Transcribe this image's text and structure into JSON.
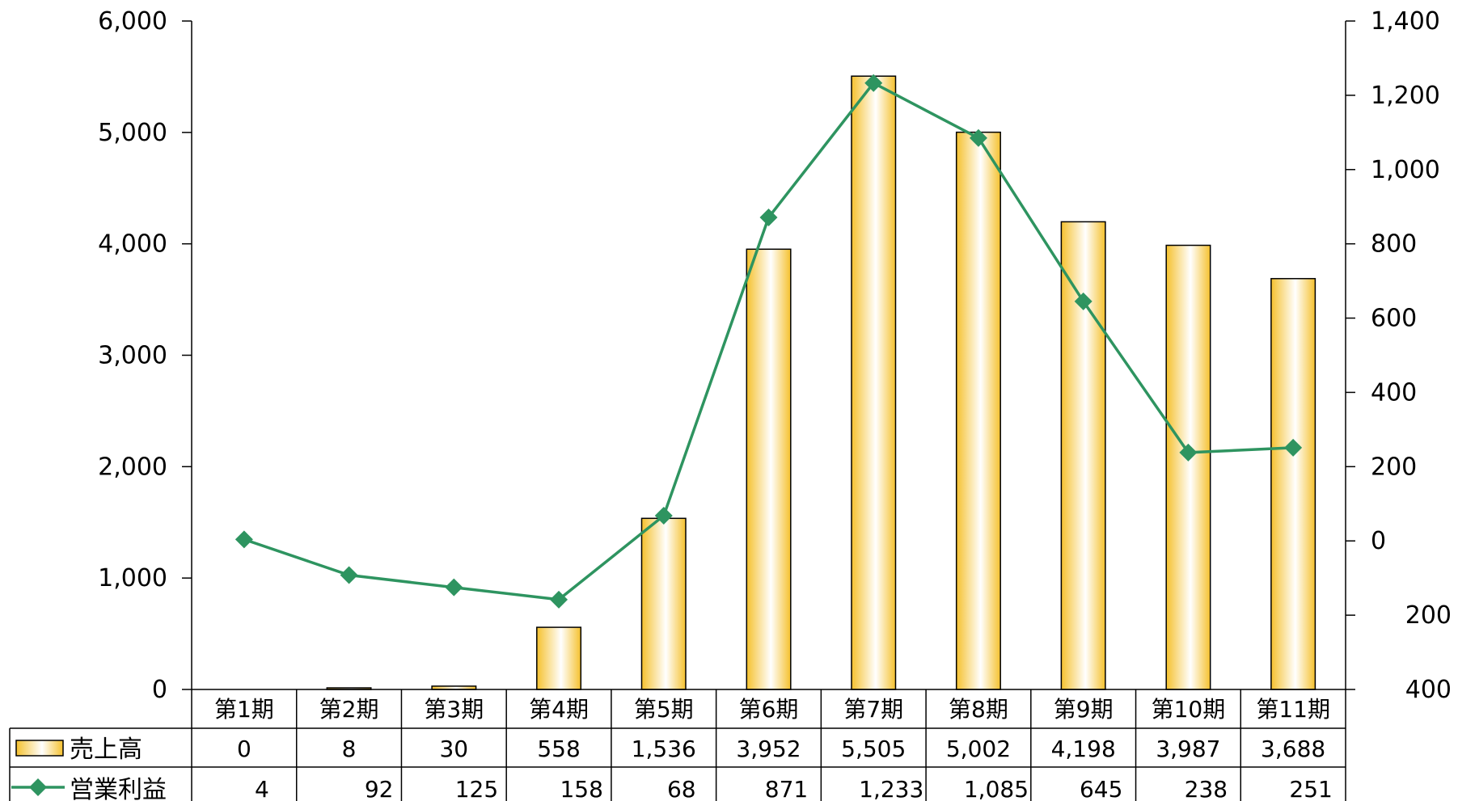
{
  "chart_data": {
    "type": "bar",
    "categories": [
      "第1期",
      "第2期",
      "第3期",
      "第4期",
      "第5期",
      "第6期",
      "第7期",
      "第8期",
      "第9期",
      "第10期",
      "第11期"
    ],
    "series": [
      {
        "name": "売上高",
        "type": "bar",
        "axis": "left",
        "values": [
          0,
          8,
          30,
          558,
          1536,
          3952,
          5505,
          5002,
          4198,
          3987,
          3688
        ],
        "color": "#F5C33B"
      },
      {
        "name": "営業利益",
        "type": "line",
        "axis": "right",
        "values": [
          4,
          -92,
          -125,
          -158,
          68,
          871,
          1233,
          1085,
          645,
          238,
          251
        ],
        "color": "#2E9460",
        "marker": "diamond"
      }
    ],
    "table_values": {
      "売上高": [
        "0",
        "8",
        "30",
        "558",
        "1,536",
        "3,952",
        "5,505",
        "5,002",
        "4,198",
        "3,987",
        "3,688"
      ],
      "営業利益": [
        "4",
        "92",
        "125",
        "158",
        "68",
        "871",
        "1,233",
        "1,085",
        "645",
        "238",
        "251"
      ]
    },
    "left_axis": {
      "ylim": [
        0,
        6000
      ],
      "ticks": [
        0,
        1000,
        2000,
        3000,
        4000,
        5000,
        6000
      ],
      "tick_labels": [
        "0",
        "1,000",
        "2,000",
        "3,000",
        "4,000",
        "5,000",
        "6,000"
      ]
    },
    "right_axis": {
      "ylim": [
        -400,
        1400
      ],
      "ticks": [
        -400,
        -200,
        0,
        200,
        400,
        600,
        800,
        1000,
        1200,
        1400
      ],
      "tick_labels": [
        "400",
        "200",
        "0",
        "200",
        "400",
        "600",
        "800",
        "1,000",
        "1,200",
        "1,400"
      ]
    },
    "legend_placement": "data-table",
    "grid": false
  }
}
